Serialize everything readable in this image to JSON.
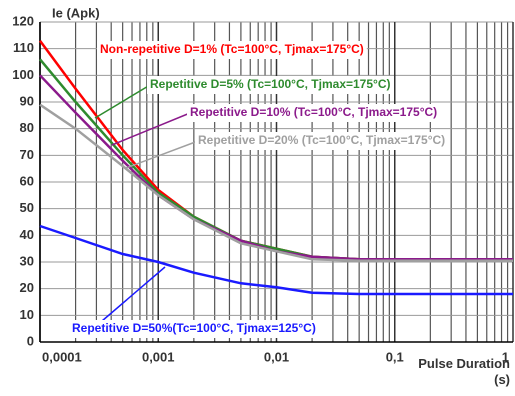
{
  "chart_data": {
    "type": "line",
    "y_label": "Ie (Apk)",
    "x_label": "Pulse Duration (s)",
    "log_x": true,
    "grid": true,
    "x": [
      0.0001,
      0.0002,
      0.0005,
      0.001,
      0.002,
      0.005,
      0.01,
      0.02,
      0.05,
      0.1,
      0.2,
      0.5,
      1
    ],
    "xlim": [
      0.0001,
      1
    ],
    "xticks": [
      {
        "value": 0.0001,
        "label": "0,0001"
      },
      {
        "value": 0.001,
        "label": "0,001"
      },
      {
        "value": 0.01,
        "label": "0,01"
      },
      {
        "value": 0.1,
        "label": "0,1"
      },
      1
    ],
    "ylim": [
      0,
      120
    ],
    "yticks": [
      0,
      10,
      20,
      30,
      40,
      50,
      60,
      70,
      80,
      90,
      100,
      110,
      120
    ],
    "series": [
      {
        "name": "Non-repetitive D=1% (Tc=100°C, Tjmax=175°C)",
        "color": "#ff0000",
        "values": [
          113,
          95,
          72,
          57,
          47,
          38,
          35,
          32,
          31,
          31,
          31,
          31,
          31
        ]
      },
      {
        "name": "Repetitive D=5% (Tc=100°C, Tjmax=175°C)",
        "color": "#2e8b2e",
        "values": [
          106,
          90,
          70,
          56,
          47,
          38,
          35,
          32,
          31,
          31,
          31,
          31,
          31
        ]
      },
      {
        "name": "Repetitive D=10% (Tc=100°C, Tjmax=175°C)",
        "color": "#8b1a8b",
        "values": [
          100,
          86,
          68,
          55,
          46,
          38,
          34,
          32,
          31,
          31,
          31,
          31,
          31
        ]
      },
      {
        "name": "Repetitive D=20% (Tc=100°C, Tjmax=175°C)",
        "color": "#a0a0a0",
        "values": [
          89,
          80,
          66,
          55,
          46,
          37,
          34,
          31,
          30.5,
          30.5,
          30.5,
          30.5,
          30.5
        ]
      },
      {
        "name": "Repetitive D=50%(Tc=100°C, Tjmax=125°C)",
        "color": "#1a1aff",
        "values": [
          43.5,
          39,
          33,
          30,
          26,
          22,
          20.5,
          18.5,
          18,
          18,
          18,
          18,
          18
        ]
      }
    ]
  }
}
